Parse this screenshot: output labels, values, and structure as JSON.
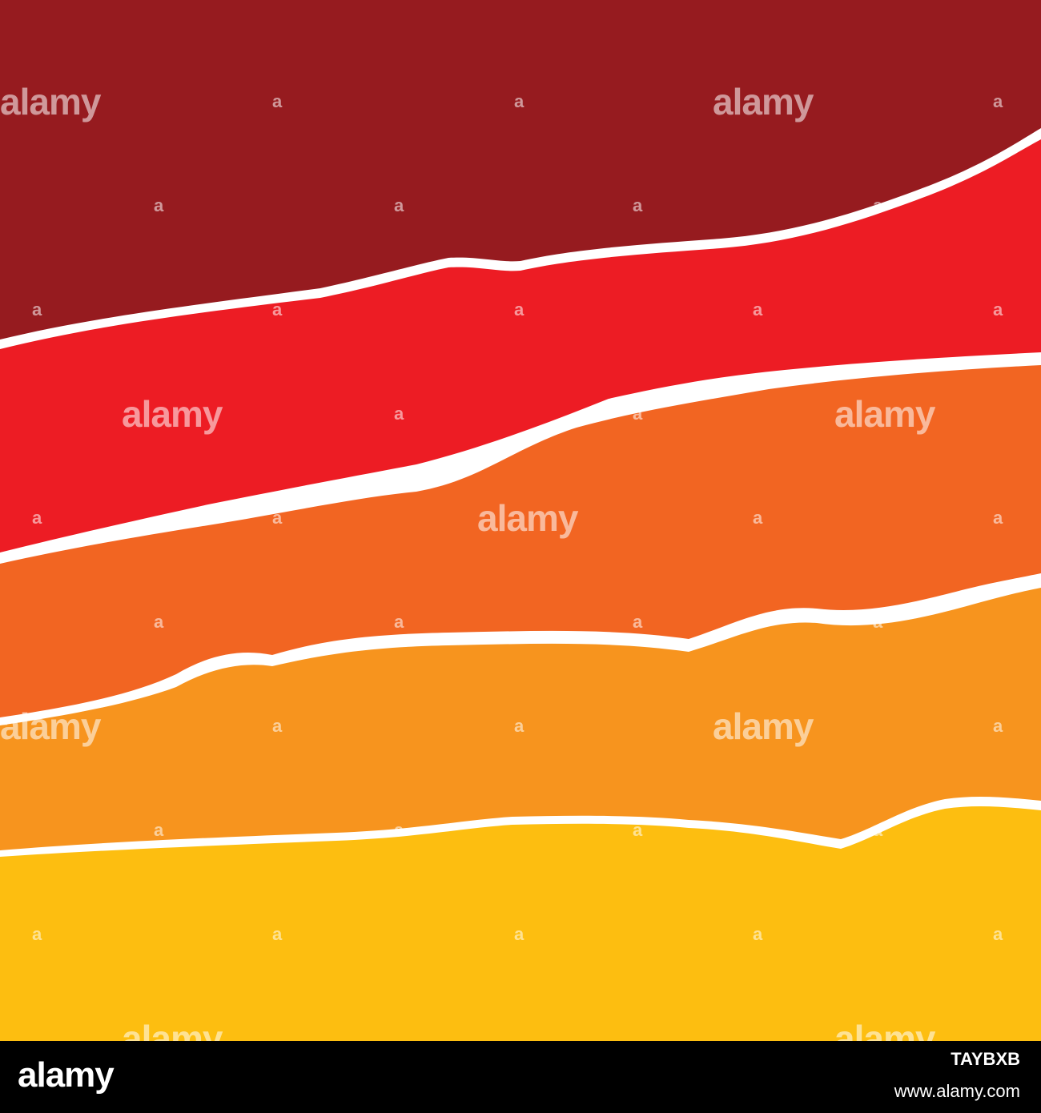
{
  "artwork": {
    "layers": [
      {
        "name": "dark-red",
        "color": "#961B1F"
      },
      {
        "name": "red",
        "color": "#ED1C24"
      },
      {
        "name": "orange",
        "color": "#F26522"
      },
      {
        "name": "light-orange",
        "color": "#F7941E"
      },
      {
        "name": "yellow",
        "color": "#FDBE10"
      }
    ],
    "tear_color": "#FFFFFF",
    "watermark_word": "alamy",
    "watermark_mark": "a"
  },
  "footer": {
    "logo": "alamy",
    "image_id": "TAYBXB",
    "url": "www.alamy.com"
  }
}
